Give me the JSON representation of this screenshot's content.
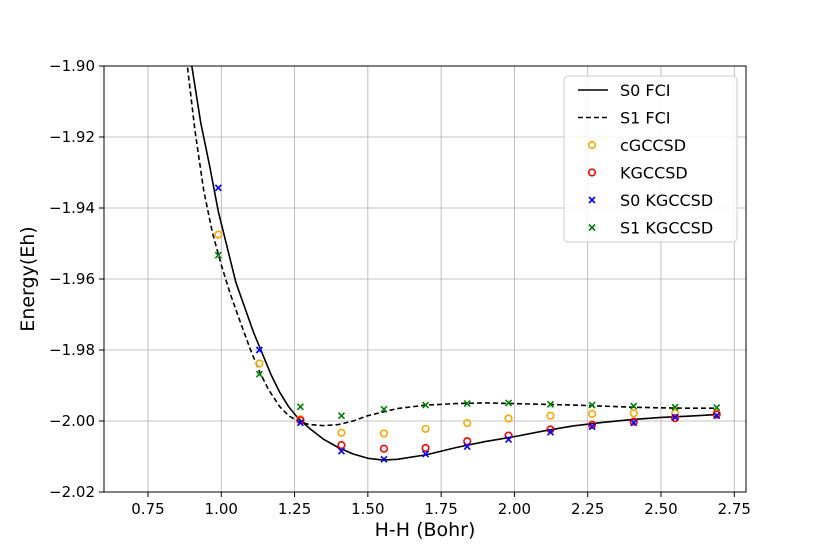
{
  "chart_data": {
    "type": "line",
    "title": "",
    "xlabel": "H-H (Bohr)",
    "ylabel": "Energy(Eh)",
    "xlim": [
      0.6,
      2.79
    ],
    "ylim": [
      -2.02,
      -1.9
    ],
    "grid": true,
    "legend_position": "top-right",
    "x_ticks": [
      0.75,
      1.0,
      1.25,
      1.5,
      1.75,
      2.0,
      2.25,
      2.5,
      2.75
    ],
    "x_tick_labels": [
      "0.75",
      "1.00",
      "1.25",
      "1.50",
      "1.75",
      "2.00",
      "2.25",
      "2.50",
      "2.75"
    ],
    "y_ticks": [
      -2.02,
      -2.0,
      -1.98,
      -1.96,
      -1.94,
      -1.92,
      -1.9
    ],
    "y_tick_labels": [
      "−2.02",
      "−2.00",
      "−1.98",
      "−1.96",
      "−1.94",
      "−1.92",
      "−1.90"
    ],
    "series": [
      {
        "name": "S0 FCI",
        "kind": "line",
        "style": "solid",
        "color": "#000000",
        "x": [
          0.85,
          0.89,
          0.93,
          0.96,
          0.99,
          1.02,
          1.05,
          1.08,
          1.11,
          1.14,
          1.17,
          1.2,
          1.23,
          1.26,
          1.3,
          1.35,
          1.4,
          1.45,
          1.5,
          1.55,
          1.6,
          1.7,
          1.8,
          1.9,
          2.0,
          2.1,
          2.2,
          2.3,
          2.4,
          2.5,
          2.6,
          2.69
        ],
        "y": [
          -1.86,
          -1.895,
          -1.916,
          -1.928,
          -1.941,
          -1.951,
          -1.961,
          -1.968,
          -1.975,
          -1.981,
          -1.987,
          -1.992,
          -1.996,
          -1.999,
          -2.002,
          -2.0052,
          -2.0075,
          -2.0093,
          -2.0105,
          -2.011,
          -2.0108,
          -2.0095,
          -2.0075,
          -2.0058,
          -2.0044,
          -2.0028,
          -2.0014,
          -2.0004,
          -1.9996,
          -1.999,
          -1.9986,
          -1.9982
        ]
      },
      {
        "name": "S1 FCI",
        "kind": "line",
        "style": "dashed",
        "color": "#000000",
        "x": [
          0.85,
          0.88,
          0.91,
          0.94,
          0.97,
          1.0,
          1.03,
          1.06,
          1.1,
          1.13,
          1.16,
          1.2,
          1.23,
          1.26,
          1.3,
          1.35,
          1.4,
          1.45,
          1.5,
          1.55,
          1.6,
          1.7,
          1.8,
          1.9,
          2.0,
          2.1,
          2.2,
          2.3,
          2.4,
          2.5,
          2.6,
          2.69
        ],
        "y": [
          -1.86,
          -1.897,
          -1.918,
          -1.935,
          -1.947,
          -1.956,
          -1.964,
          -1.971,
          -1.98,
          -1.986,
          -1.991,
          -1.996,
          -1.9985,
          -2.0,
          -2.001,
          -2.0013,
          -2.001,
          -2.0,
          -1.9985,
          -1.9975,
          -1.9965,
          -1.9955,
          -1.9951,
          -1.9949,
          -1.9951,
          -1.9953,
          -1.9955,
          -1.9958,
          -1.9961,
          -1.9963,
          -1.9964,
          -1.9964
        ]
      },
      {
        "name": "cGCCSD",
        "kind": "marker",
        "marker": "circle",
        "color": "#FFA500",
        "x": [
          0.99,
          1.13,
          1.27,
          1.41,
          1.555,
          1.697,
          1.839,
          1.98,
          2.123,
          2.265,
          2.407,
          2.548,
          2.69
        ],
        "y": [
          -1.9475,
          -1.9838,
          -1.9995,
          -2.0033,
          -2.0035,
          -2.0022,
          -2.0006,
          -1.9993,
          -1.9985,
          -1.998,
          -1.9978,
          -1.9978,
          -1.9978
        ]
      },
      {
        "name": "KGCCSD",
        "kind": "marker",
        "marker": "circle",
        "color": "#FF0000",
        "x": [
          1.27,
          1.41,
          1.555,
          1.697,
          1.839,
          1.98,
          2.123,
          2.265,
          2.407,
          2.548,
          2.69
        ],
        "y": [
          -1.9998,
          -2.0068,
          -2.0078,
          -2.0076,
          -2.0057,
          -2.0041,
          -2.0024,
          -2.0011,
          -2.0002,
          -1.9992,
          -1.9982
        ]
      },
      {
        "name": "S0 KGCCSD",
        "kind": "marker",
        "marker": "x",
        "color": "#0000FF",
        "x": [
          0.99,
          1.13,
          1.27,
          1.41,
          1.555,
          1.697,
          1.839,
          1.98,
          2.123,
          2.265,
          2.407,
          2.548,
          2.69
        ],
        "y": [
          -1.9343,
          -1.98,
          -2.0005,
          -2.0085,
          -2.0108,
          -2.0093,
          -2.0072,
          -2.0052,
          -2.0032,
          -2.0016,
          -2.0005,
          -1.999,
          -1.9985
        ]
      },
      {
        "name": "S1 KGCCSD",
        "kind": "marker",
        "marker": "x",
        "color": "#008000",
        "x": [
          0.99,
          1.13,
          1.27,
          1.41,
          1.555,
          1.697,
          1.839,
          1.98,
          2.123,
          2.265,
          2.407,
          2.548,
          2.69
        ],
        "y": [
          -1.9533,
          -1.9868,
          -1.996,
          -1.9985,
          -1.9967,
          -1.9955,
          -1.9951,
          -1.9949,
          -1.9953,
          -1.9955,
          -1.9958,
          -1.9961,
          -1.9962
        ]
      }
    ]
  }
}
